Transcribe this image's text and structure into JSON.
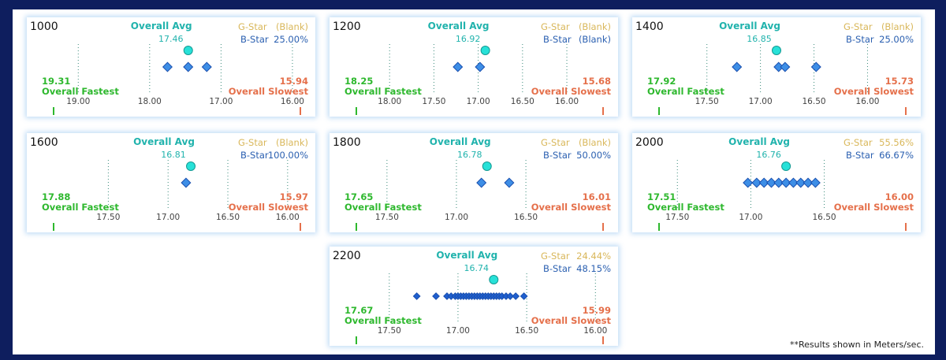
{
  "footnote": "**Results shown in Meters/sec.",
  "labels": {
    "overall_avg": "Overall Avg",
    "overall_fastest": "Overall Fastest",
    "overall_slowest": "Overall Slowest",
    "g_star": "G-Star",
    "b_star": "B-Star"
  },
  "colors": {
    "page_background": "#0e1e5e",
    "avg": "#21b3ad",
    "avg_marker": "#27e1d8",
    "fastest": "#2eb82e",
    "slowest": "#e5704b",
    "g_star": "#d9b75a",
    "b_star": "#2a5fb0",
    "diamond": "#3d8ee6",
    "diamond_dense": "#1f5fcf",
    "tick_text": "#444444"
  },
  "chart_data": [
    {
      "type": "scatter",
      "title": "1000",
      "x_direction": "reversed",
      "xlim": [
        19.5,
        15.9
      ],
      "ticks": [
        "19.00",
        "18.00",
        "17.00",
        "16.00"
      ],
      "tick_values": [
        19.0,
        18.0,
        17.0,
        16.0
      ],
      "overall_avg": "17.46",
      "overall_avg_value": 17.46,
      "overall_fastest": "19.31",
      "overall_slowest": "15.94",
      "g_star": "(Blank)",
      "b_star": "25.00%",
      "points": [
        17.75,
        17.46,
        17.2
      ]
    },
    {
      "type": "scatter",
      "title": "1200",
      "x_direction": "reversed",
      "xlim": [
        18.5,
        15.6
      ],
      "ticks": [
        "18.00",
        "17.50",
        "17.00",
        "16.50",
        "16.00"
      ],
      "tick_values": [
        18.0,
        17.5,
        17.0,
        16.5,
        16.0
      ],
      "overall_avg": "16.92",
      "overall_avg_value": 16.92,
      "overall_fastest": "18.25",
      "overall_slowest": "15.68",
      "g_star": "(Blank)",
      "b_star": "(Blank)",
      "points": [
        17.23,
        16.98
      ]
    },
    {
      "type": "scatter",
      "title": "1400",
      "x_direction": "reversed",
      "xlim": [
        18.05,
        15.65
      ],
      "ticks": [
        "17.50",
        "17.00",
        "16.50",
        "16.00"
      ],
      "tick_values": [
        17.5,
        17.0,
        16.5,
        16.0
      ],
      "overall_avg": "16.85",
      "overall_avg_value": 16.85,
      "overall_fastest": "17.92",
      "overall_slowest": "15.73",
      "g_star": "(Blank)",
      "b_star": "25.00%",
      "points": [
        17.22,
        16.83,
        16.77,
        16.48
      ]
    },
    {
      "type": "scatter",
      "title": "1600",
      "x_direction": "reversed",
      "xlim": [
        18.05,
        15.9
      ],
      "ticks": [
        "17.50",
        "17.00",
        "16.50",
        "16.00"
      ],
      "tick_values": [
        17.5,
        17.0,
        16.5,
        16.0
      ],
      "overall_avg": "16.81",
      "overall_avg_value": 16.81,
      "overall_fastest": "17.88",
      "overall_slowest": "15.97",
      "g_star": "(Blank)",
      "b_star": "100.00%",
      "points": [
        16.85
      ]
    },
    {
      "type": "scatter",
      "title": "1800",
      "x_direction": "reversed",
      "xlim": [
        17.8,
        15.95
      ],
      "ticks": [
        "17.50",
        "17.00",
        "16.50"
      ],
      "tick_values": [
        17.5,
        17.0,
        16.5
      ],
      "overall_avg": "16.78",
      "overall_avg_value": 16.78,
      "overall_fastest": "17.65",
      "overall_slowest": "16.01",
      "g_star": "(Blank)",
      "b_star": "50.00%",
      "points": [
        16.82,
        16.62
      ]
    },
    {
      "type": "scatter",
      "title": "2000",
      "x_direction": "reversed",
      "xlim": [
        17.7,
        15.95
      ],
      "ticks": [
        "17.50",
        "17.00",
        "16.50"
      ],
      "tick_values": [
        17.5,
        17.0,
        16.5
      ],
      "overall_avg": "16.76",
      "overall_avg_value": 16.76,
      "overall_fastest": "17.51",
      "overall_slowest": "16.00",
      "g_star": "55.56%",
      "b_star": "66.67%",
      "points": [
        17.02,
        16.96,
        16.91,
        16.86,
        16.81,
        16.76,
        16.71,
        16.66,
        16.61,
        16.56
      ]
    },
    {
      "type": "scatter",
      "title": "2200",
      "x_direction": "reversed",
      "xlim": [
        17.82,
        15.95
      ],
      "ticks": [
        "17.50",
        "17.00",
        "16.50",
        "16.00"
      ],
      "tick_values": [
        17.5,
        17.0,
        16.5,
        16.0
      ],
      "overall_avg": "16.74",
      "overall_avg_value": 16.74,
      "overall_fastest": "17.67",
      "overall_slowest": "15.99",
      "g_star": "24.44%",
      "b_star": "48.15%",
      "points": [
        17.3,
        17.16,
        17.08,
        17.05,
        17.02,
        17.0,
        16.98,
        16.96,
        16.94,
        16.92,
        16.9,
        16.88,
        16.86,
        16.84,
        16.82,
        16.8,
        16.78,
        16.76,
        16.74,
        16.72,
        16.7,
        16.68,
        16.65,
        16.62,
        16.58,
        16.52
      ]
    }
  ]
}
